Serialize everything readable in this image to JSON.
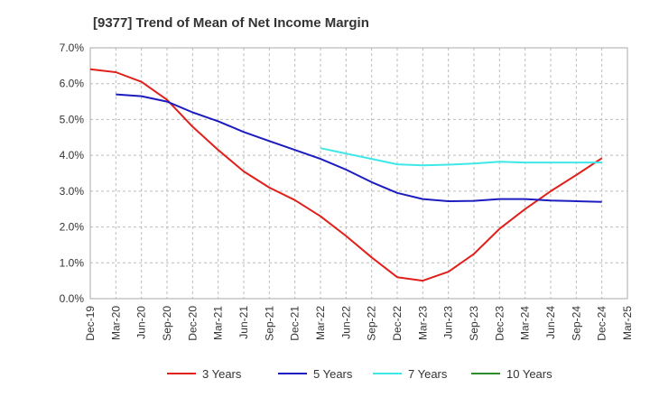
{
  "chart_data": {
    "type": "line",
    "title": "[9377]  Trend of Mean of Net Income Margin",
    "xlabel": "",
    "ylabel": "",
    "x": [
      "Dec-19",
      "Mar-20",
      "Jun-20",
      "Sep-20",
      "Dec-20",
      "Mar-21",
      "Jun-21",
      "Sep-21",
      "Dec-21",
      "Mar-22",
      "Jun-22",
      "Sep-22",
      "Dec-22",
      "Mar-23",
      "Jun-23",
      "Sep-23",
      "Dec-23",
      "Mar-24",
      "Jun-24",
      "Sep-24",
      "Dec-24",
      "Mar-25"
    ],
    "ylim": [
      0,
      7
    ],
    "yticks": [
      "0.0%",
      "1.0%",
      "2.0%",
      "3.0%",
      "4.0%",
      "5.0%",
      "6.0%",
      "7.0%"
    ],
    "grid": true,
    "legend_position": "bottom",
    "series": [
      {
        "name": "3 Years",
        "color": "#e0201b",
        "points": [
          [
            "Dec-19",
            6.4
          ],
          [
            "Mar-20",
            6.32
          ],
          [
            "Jun-20",
            6.05
          ],
          [
            "Sep-20",
            5.55
          ],
          [
            "Dec-20",
            4.8
          ],
          [
            "Mar-21",
            4.15
          ],
          [
            "Jun-21",
            3.55
          ],
          [
            "Sep-21",
            3.1
          ],
          [
            "Dec-21",
            2.75
          ],
          [
            "Mar-22",
            2.3
          ],
          [
            "Jun-22",
            1.75
          ],
          [
            "Sep-22",
            1.15
          ],
          [
            "Dec-22",
            0.6
          ],
          [
            "Mar-23",
            0.5
          ],
          [
            "Jun-23",
            0.75
          ],
          [
            "Sep-23",
            1.25
          ],
          [
            "Dec-23",
            1.95
          ],
          [
            "Mar-24",
            2.5
          ],
          [
            "Jun-24",
            3.0
          ],
          [
            "Sep-24",
            3.45
          ],
          [
            "Dec-24",
            3.92
          ]
        ]
      },
      {
        "name": "5 Years",
        "color": "#1c1cc0",
        "points": [
          [
            "Mar-20",
            5.7
          ],
          [
            "Jun-20",
            5.65
          ],
          [
            "Sep-20",
            5.5
          ],
          [
            "Dec-20",
            5.2
          ],
          [
            "Mar-21",
            4.95
          ],
          [
            "Jun-21",
            4.65
          ],
          [
            "Sep-21",
            4.4
          ],
          [
            "Dec-21",
            4.15
          ],
          [
            "Mar-22",
            3.9
          ],
          [
            "Jun-22",
            3.6
          ],
          [
            "Sep-22",
            3.25
          ],
          [
            "Dec-22",
            2.95
          ],
          [
            "Mar-23",
            2.78
          ],
          [
            "Jun-23",
            2.72
          ],
          [
            "Sep-23",
            2.73
          ],
          [
            "Dec-23",
            2.78
          ],
          [
            "Mar-24",
            2.78
          ],
          [
            "Jun-24",
            2.74
          ],
          [
            "Sep-24",
            2.72
          ],
          [
            "Dec-24",
            2.7
          ]
        ]
      },
      {
        "name": "7 Years",
        "color": "#3ee8e8",
        "points": [
          [
            "Mar-22",
            4.2
          ],
          [
            "Jun-22",
            4.05
          ],
          [
            "Sep-22",
            3.9
          ],
          [
            "Dec-22",
            3.75
          ],
          [
            "Mar-23",
            3.72
          ],
          [
            "Jun-23",
            3.74
          ],
          [
            "Sep-23",
            3.77
          ],
          [
            "Dec-23",
            3.82
          ],
          [
            "Mar-24",
            3.8
          ],
          [
            "Jun-24",
            3.8
          ],
          [
            "Sep-24",
            3.8
          ],
          [
            "Dec-24",
            3.8
          ]
        ]
      },
      {
        "name": "10 Years",
        "color": "#2e8b2e",
        "points": []
      }
    ]
  }
}
